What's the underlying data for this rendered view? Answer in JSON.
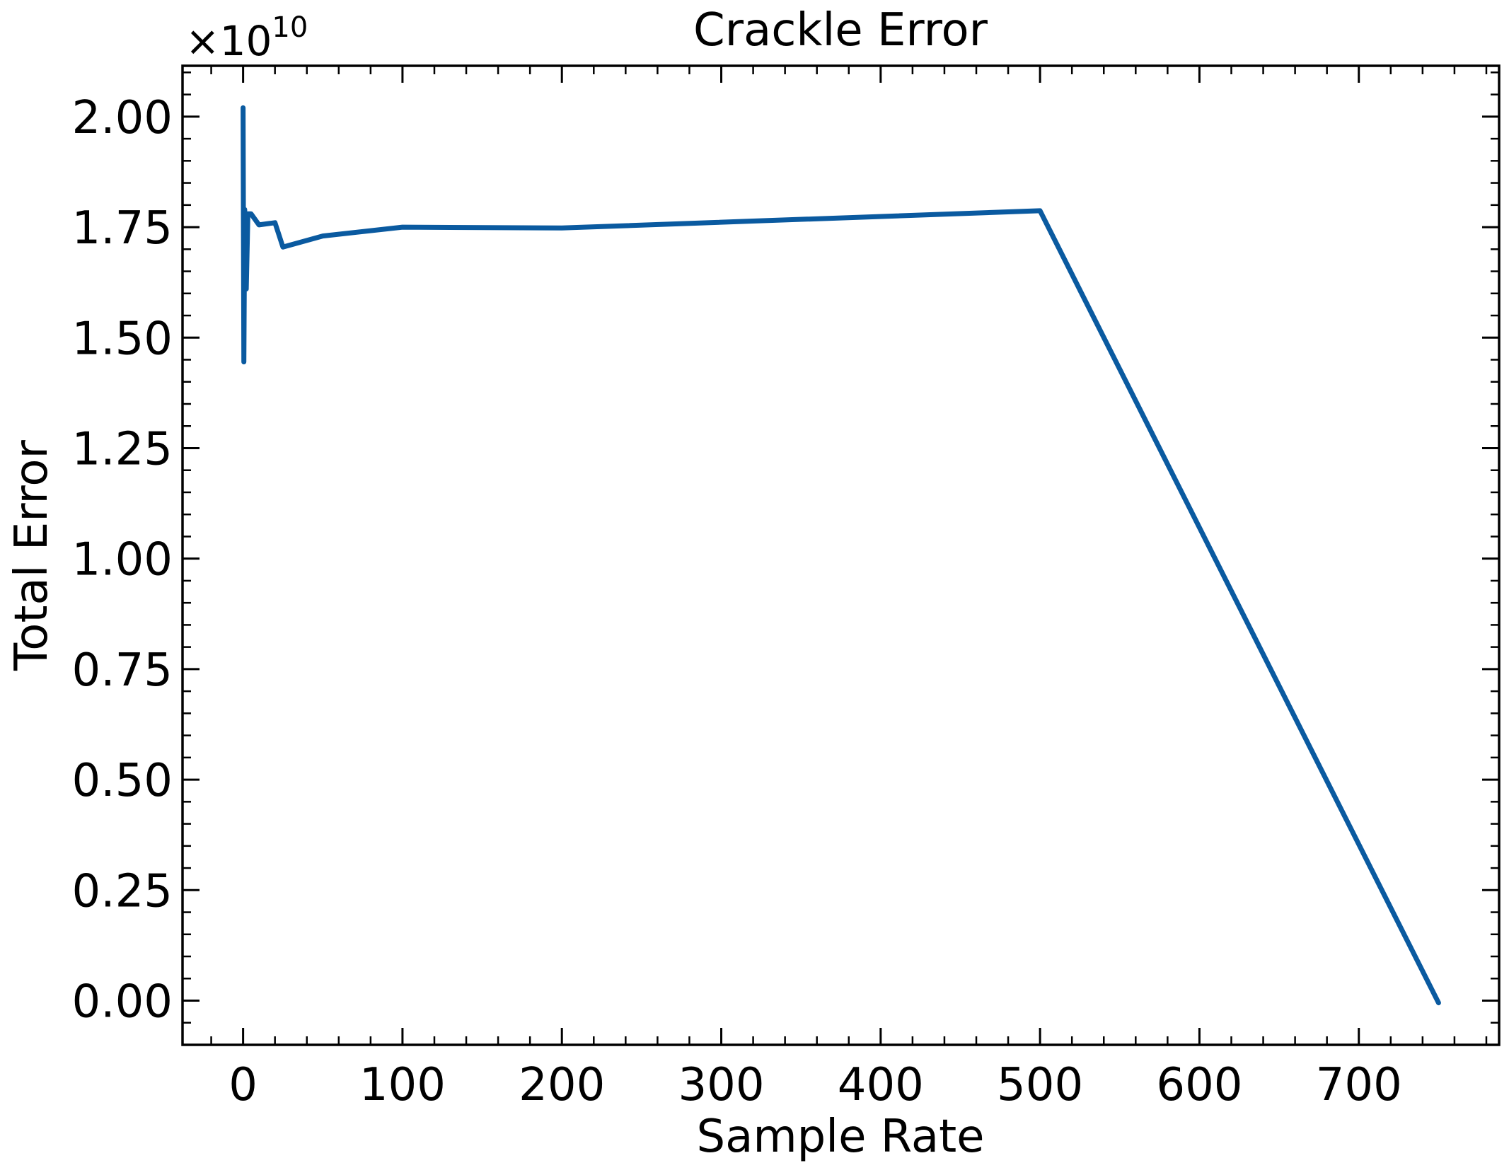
{
  "chart_data": {
    "type": "line",
    "title": "Crackle Error",
    "xlabel": "Sample Rate",
    "ylabel": "Total Error",
    "offset_prefix": "×10",
    "offset_exponent": "10",
    "xlim": [
      -38,
      788
    ],
    "ylim": [
      -0.1,
      2.115
    ],
    "xticks": [
      0,
      100,
      200,
      300,
      400,
      500,
      600,
      700
    ],
    "xtick_labels": [
      "0",
      "100",
      "200",
      "300",
      "400",
      "500",
      "600",
      "700"
    ],
    "yticks": [
      0,
      0.25,
      0.5,
      0.75,
      1.0,
      1.25,
      1.5,
      1.75,
      2.0
    ],
    "ytick_labels": [
      "0.00",
      "0.25",
      "0.50",
      "0.75",
      "1.00",
      "1.25",
      "1.50",
      "1.75",
      "2.00"
    ],
    "grid": false,
    "line_color": "#0a5aa0",
    "series": [
      {
        "x": [
          0,
          0.5,
          1,
          2,
          3,
          5,
          10,
          20,
          25,
          50,
          100,
          200,
          500,
          750
        ],
        "y": [
          2.02,
          1.445,
          1.79,
          1.61,
          1.78,
          1.78,
          1.755,
          1.76,
          1.705,
          1.73,
          1.75,
          1.748,
          1.787,
          -0.005
        ]
      }
    ]
  }
}
